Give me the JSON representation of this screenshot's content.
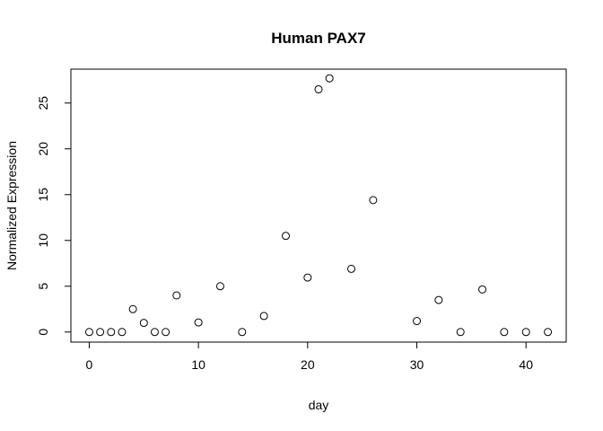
{
  "chart_data": {
    "type": "scatter",
    "title": "Human PAX7",
    "xlabel": "day",
    "ylabel": "Normalized Expression",
    "xlim": [
      -1.68,
      43.68
    ],
    "ylim": [
      -1.1,
      28.7
    ],
    "xticks": [
      0,
      10,
      20,
      30,
      40
    ],
    "yticks": [
      0,
      5,
      10,
      15,
      20,
      25
    ],
    "grid": false,
    "legend": "none",
    "marker": "open-circle",
    "series": [
      {
        "x": [
          0,
          1,
          2,
          3,
          4,
          5,
          6,
          7,
          8,
          10,
          12,
          14,
          16,
          18,
          20,
          21,
          22,
          24,
          26,
          30,
          32,
          34,
          36,
          38,
          40,
          42
        ],
        "y": [
          0,
          0,
          0,
          0,
          2.5,
          1.0,
          0,
          0,
          4.0,
          1.05,
          5.0,
          0,
          1.75,
          10.5,
          5.95,
          26.5,
          27.7,
          6.9,
          14.4,
          1.2,
          3.5,
          0,
          4.65,
          0,
          0,
          0
        ]
      }
    ]
  }
}
